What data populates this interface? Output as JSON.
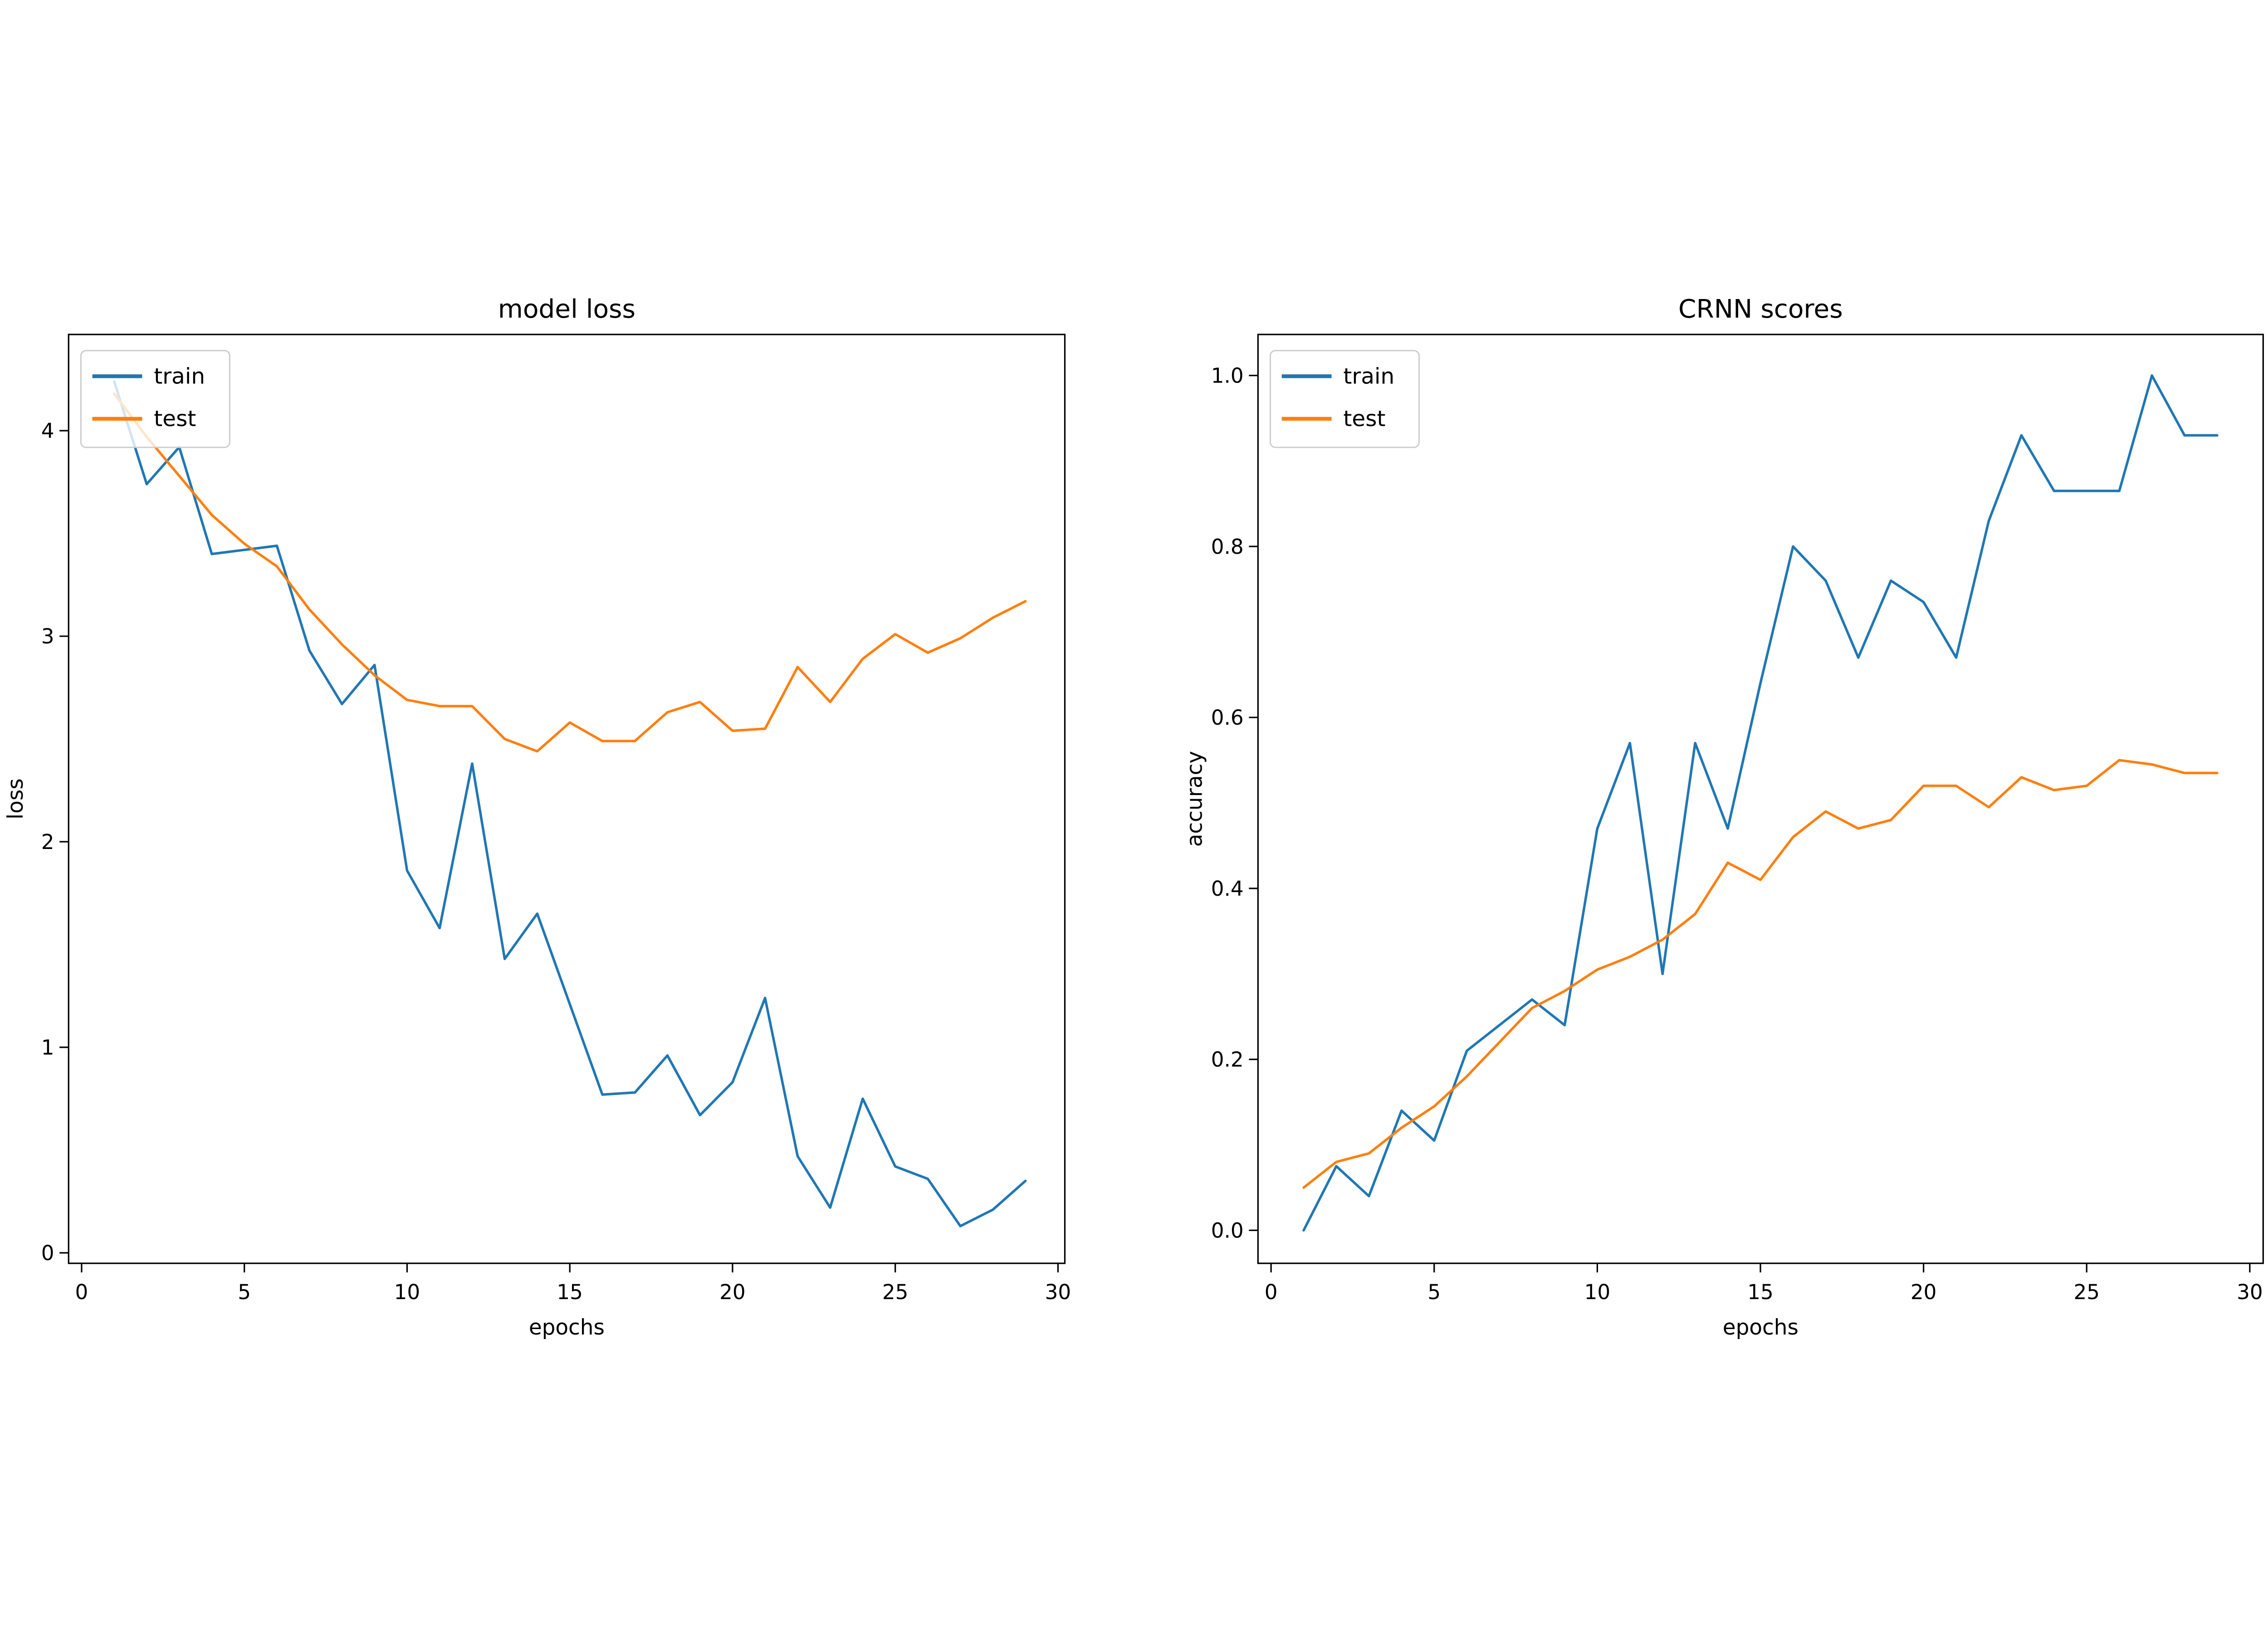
{
  "figure": {
    "background": "#ffffff"
  },
  "colors": {
    "train": "#1f77b4",
    "test": "#ff7f0e",
    "axis": "#000000",
    "text": "#000000",
    "legend_border": "#cccccc",
    "legend_fill": "rgba(255,255,255,0.8)"
  },
  "chart_data": [
    {
      "type": "line",
      "title": "model loss",
      "xlabel": "epochs",
      "ylabel": "loss",
      "grid": false,
      "legend": {
        "position": "upper left",
        "entries": [
          "train",
          "test"
        ]
      },
      "xlim": [
        -0.4,
        30.21
      ],
      "ylim": [
        -0.051,
        4.468
      ],
      "xticks": {
        "values": [
          0,
          5,
          10,
          15,
          20,
          25,
          30
        ],
        "labels": [
          "0",
          "5",
          "10",
          "15",
          "20",
          "25",
          "30"
        ]
      },
      "yticks": {
        "values": [
          0,
          1,
          2,
          3,
          4
        ],
        "labels": [
          "0",
          "1",
          "2",
          "3",
          "4"
        ]
      },
      "x": [
        1,
        2,
        3,
        4,
        5,
        6,
        7,
        8,
        9,
        10,
        11,
        12,
        13,
        14,
        15,
        16,
        17,
        18,
        19,
        20,
        21,
        22,
        23,
        24,
        25,
        26,
        27,
        28,
        29
      ],
      "series": [
        {
          "name": "train",
          "color": "#1f77b4",
          "values": [
            4.24,
            3.74,
            3.92,
            3.4,
            3.42,
            3.44,
            2.93,
            2.67,
            2.86,
            1.86,
            1.58,
            2.38,
            1.43,
            1.65,
            1.21,
            0.77,
            0.78,
            0.96,
            0.67,
            0.83,
            1.24,
            0.47,
            0.22,
            0.75,
            0.42,
            0.36,
            0.13,
            0.21,
            0.35
          ]
        },
        {
          "name": "test",
          "color": "#ff7f0e",
          "values": [
            4.18,
            3.97,
            3.78,
            3.59,
            3.45,
            3.34,
            3.13,
            2.96,
            2.81,
            2.69,
            2.66,
            2.66,
            2.5,
            2.44,
            2.58,
            2.49,
            2.49,
            2.63,
            2.68,
            2.54,
            2.55,
            2.85,
            2.68,
            2.89,
            3.01,
            2.92,
            2.99,
            3.09,
            3.17
          ]
        }
      ]
    },
    {
      "type": "line",
      "title": "CRNN scores",
      "xlabel": "epochs",
      "ylabel": "accuracy",
      "grid": false,
      "legend": {
        "position": "upper left",
        "entries": [
          "train",
          "test"
        ]
      },
      "xlim": [
        -0.4,
        30.41
      ],
      "ylim": [
        -0.0386,
        1.048
      ],
      "xticks": {
        "values": [
          0,
          5,
          10,
          15,
          20,
          25,
          30
        ],
        "labels": [
          "0",
          "5",
          "10",
          "15",
          "20",
          "25",
          "30"
        ]
      },
      "yticks": {
        "values": [
          0.0,
          0.2,
          0.4,
          0.6,
          0.8,
          1.0
        ],
        "labels": [
          "0.0",
          "0.2",
          "0.4",
          "0.6",
          "0.8",
          "1.0"
        ]
      },
      "x": [
        1,
        2,
        3,
        4,
        5,
        6,
        7,
        8,
        9,
        10,
        11,
        12,
        13,
        14,
        15,
        16,
        17,
        18,
        19,
        20,
        21,
        22,
        23,
        24,
        25,
        26,
        27,
        28,
        29
      ],
      "series": [
        {
          "name": "train",
          "color": "#1f77b4",
          "values": [
            0.0,
            0.075,
            0.04,
            0.14,
            0.105,
            0.21,
            0.24,
            0.27,
            0.24,
            0.47,
            0.57,
            0.3,
            0.57,
            0.47,
            0.64,
            0.8,
            0.76,
            0.67,
            0.76,
            0.735,
            0.67,
            0.83,
            0.93,
            0.865,
            0.865,
            0.865,
            1.0,
            0.93,
            0.93
          ]
        },
        {
          "name": "test",
          "color": "#ff7f0e",
          "values": [
            0.05,
            0.08,
            0.09,
            0.12,
            0.145,
            0.18,
            0.22,
            0.26,
            0.28,
            0.305,
            0.32,
            0.34,
            0.37,
            0.43,
            0.41,
            0.46,
            0.49,
            0.47,
            0.48,
            0.52,
            0.52,
            0.495,
            0.53,
            0.515,
            0.52,
            0.55,
            0.545,
            0.535,
            0.535
          ]
        }
      ]
    }
  ]
}
